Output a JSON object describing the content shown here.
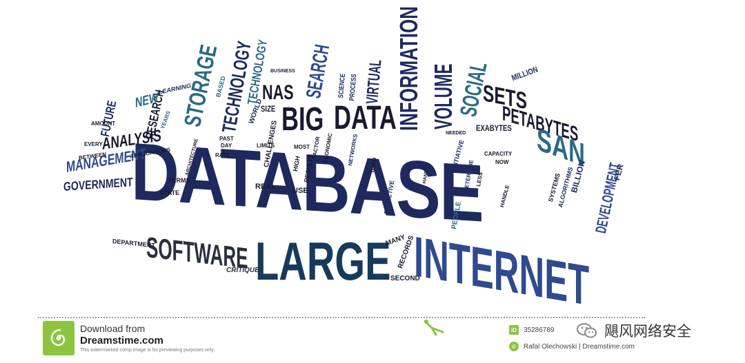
{
  "colors": {
    "navy": "#1e2a5e",
    "blue": "#2f4b8f",
    "teal": "#2c6a86",
    "dark": "#1a1a2e",
    "brand_green": "#8bc53f"
  },
  "cloud": {
    "database": "DATABASE",
    "large": "LARGE",
    "internet": "INTERNET",
    "software": "SOFTWARE",
    "big": "BIG",
    "data": "DATA",
    "information": "INFORMATION",
    "volume": "VOLUME",
    "storage": "STORAGE",
    "technology_1": "TECHNOLOGY",
    "technology_2": "TECHNOLOGY",
    "nas": "NAS",
    "search": "SEARCH",
    "virtual": "VIRTUAL",
    "social": "SOCIAL",
    "sets": "SETS",
    "petabytes": "PETABYTES",
    "san": "SAN",
    "analysis": "ANALYSIS",
    "management": "MANAGEMENT",
    "government": "GOVERNMENT",
    "future": "FUTURE",
    "research": "RESEARCH",
    "new": "NEW",
    "development": "DEVELOPMENT",
    "exabytes": "EXABYTES",
    "million": "MILLION",
    "size": "SIZE",
    "science": "SCIENCE",
    "process": "PROCESS",
    "department": "DEPARTMENT",
    "critique": "CRITIQUE",
    "records": "RECORDS",
    "second": "SECOND",
    "many": "MANY",
    "people": "PEOPLE",
    "effective": "EFFECTIVE",
    "use": "USE",
    "real": "REAL",
    "state": "STATE",
    "terms": "TERMS",
    "applications": "APPLICATIONS",
    "between": "BETWEEN",
    "every": "EVERY",
    "amount": "AMOUNT",
    "based": "BASED",
    "world": "WORLD",
    "challenges": "CHALLENGES",
    "limits": "LIMITS",
    "high": "HIGH",
    "results": "RESULTS",
    "most": "MOST",
    "factor": "FACTOR",
    "economic": "ECONOMIC",
    "networks": "NETWORKS",
    "used": "USED",
    "past": "PAST",
    "day": "DAY",
    "rate": "RATE",
    "architecture": "ARCHITECTURE",
    "hand": "HAND",
    "initiative": "INITIATIVE",
    "capacity": "CAPACITY",
    "now": "NOW",
    "handle": "HANDLE",
    "systems": "SYSTEMS",
    "algorithms": "ALGORITHMS",
    "billion": "BILLION",
    "fer": "FER",
    "learning": "LEARNING",
    "years": "YEARS",
    "determine": "DETERMINE",
    "less": "LESS",
    "needed": "NEEDED",
    "business": "BUSINESS"
  },
  "footer": {
    "download_from": "Download from",
    "site": "Dreamstime.com",
    "watermark_note": "This watermarked comp image is for previewing purposes only.",
    "image_id": "35286789",
    "author": "Rafal Olechowski | Dreamstime.com",
    "id_badge": "ID",
    "author_badge": "©",
    "wechat_account": "飓风网络安全"
  }
}
